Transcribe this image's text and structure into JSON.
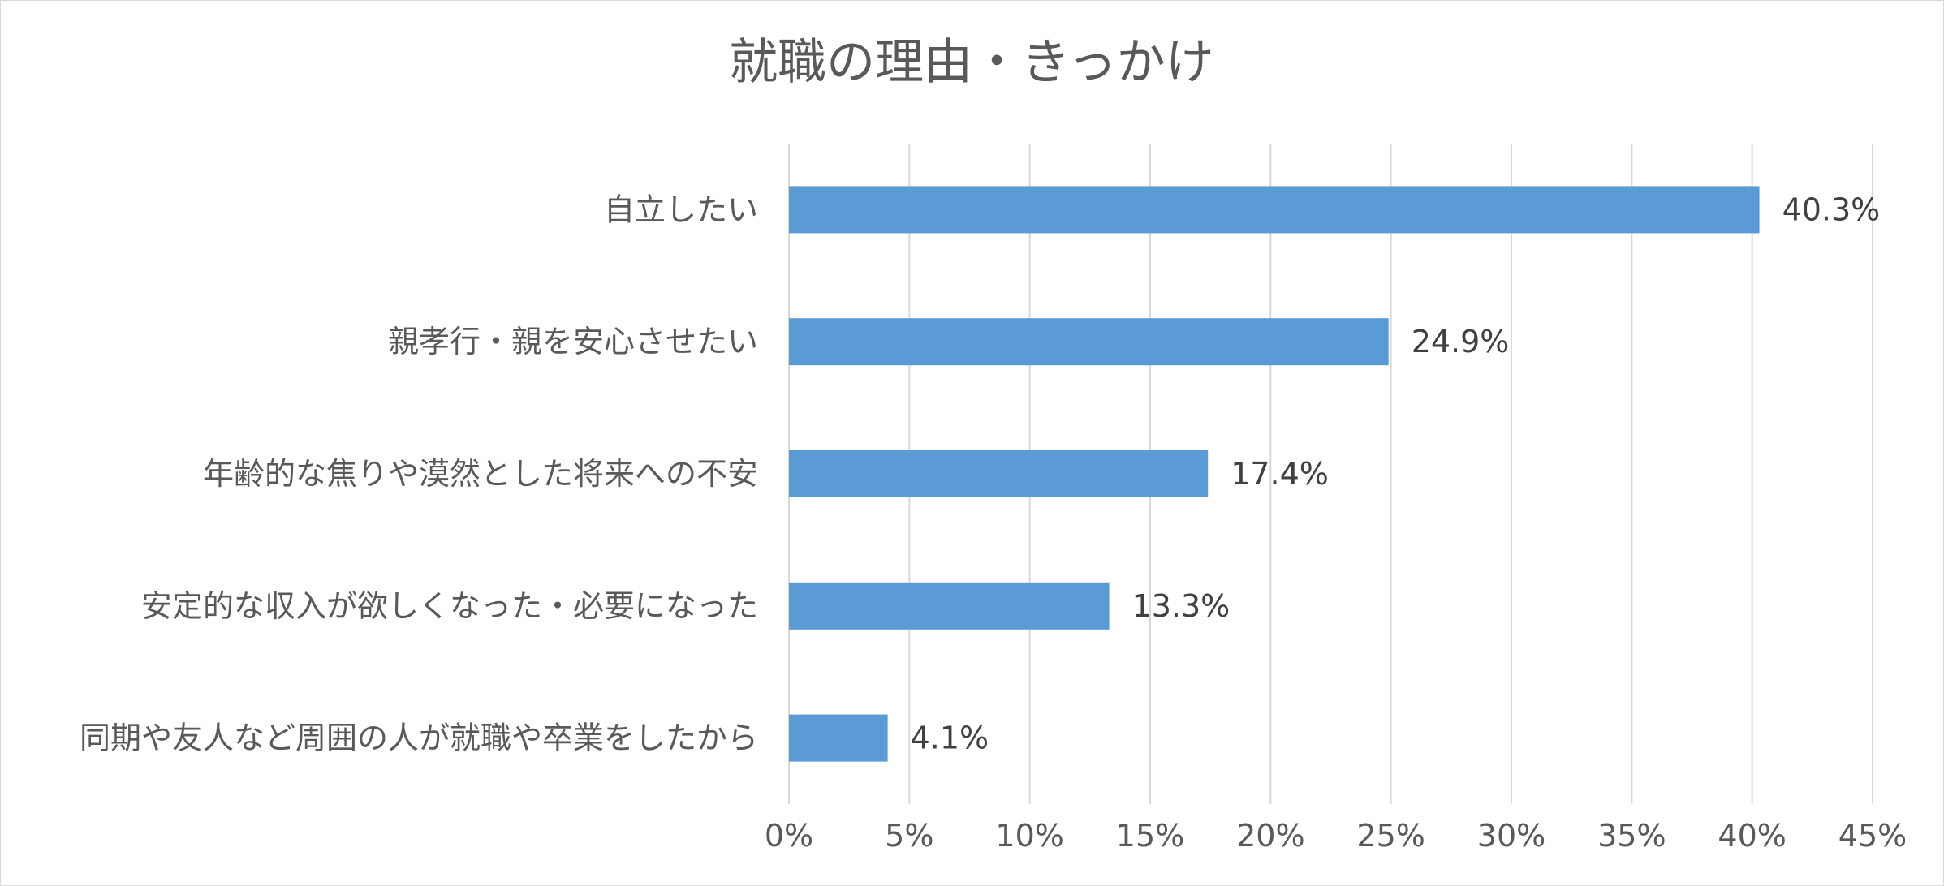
{
  "chart_data": {
    "type": "bar",
    "orientation": "horizontal",
    "title": "就職の理由・きっかけ",
    "xlabel": "",
    "ylabel": "",
    "categories": [
      "自立したい",
      "親孝行・親を安心させたい",
      "年齢的な焦りや漠然とした将来への不安",
      "安定的な収入が欲しくなった・必要になった",
      "同期や友人など周囲の人が就職や卒業をしたから"
    ],
    "values": [
      40.3,
      24.9,
      17.4,
      13.3,
      4.1
    ],
    "value_labels": [
      "40.3%",
      "24.9%",
      "17.4%",
      "13.3%",
      "4.1%"
    ],
    "xlim": [
      0,
      45
    ],
    "x_ticks": [
      0,
      5,
      10,
      15,
      20,
      25,
      30,
      35,
      40,
      45
    ],
    "x_tick_labels": [
      "0%",
      "5%",
      "10%",
      "15%",
      "20%",
      "25%",
      "30%",
      "35%",
      "40%",
      "45%"
    ],
    "grid": "vertical",
    "legend": "none",
    "colors": {
      "bar": "#5b9bd5",
      "grid": "#d9d9d9",
      "text": "#595959",
      "label": "#404040"
    }
  }
}
